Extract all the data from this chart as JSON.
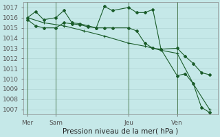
{
  "title": "Pression niveau de la mer( hPa )",
  "bg_color": "#c5e8e8",
  "grid_color": "#b0d4d4",
  "line_color": "#1a5c2a",
  "vline_color": "#3a6a3a",
  "ylim": [
    1006.5,
    1017.5
  ],
  "yticks": [
    1007,
    1008,
    1009,
    1010,
    1011,
    1012,
    1013,
    1014,
    1015,
    1016,
    1017
  ],
  "xlim": [
    0,
    48
  ],
  "xtick_positions": [
    1,
    8,
    26,
    38
  ],
  "xtick_labels": [
    "Mer",
    "Sam",
    "Jeu",
    "Ven"
  ],
  "vline_positions": [
    1,
    8,
    26,
    38
  ],
  "line1_x": [
    1,
    3,
    5,
    8,
    10,
    12,
    14,
    16,
    18,
    20,
    22,
    26,
    28,
    30,
    32,
    34,
    38,
    40,
    42,
    44,
    46
  ],
  "line1_y": [
    1016.0,
    1016.6,
    1015.8,
    1016.0,
    1016.7,
    1015.5,
    1015.4,
    1015.2,
    1015.0,
    1017.1,
    1016.7,
    1017.0,
    1016.5,
    1016.5,
    1016.8,
    1012.9,
    1013.0,
    1012.2,
    1011.5,
    1010.6,
    1010.4
  ],
  "line2_x": [
    1,
    3,
    5,
    8,
    10,
    12,
    14,
    16,
    18,
    20,
    22,
    26,
    28,
    30,
    32,
    34,
    38,
    40,
    42,
    44,
    46
  ],
  "line2_y": [
    1015.8,
    1015.2,
    1015.0,
    1015.0,
    1015.5,
    1015.4,
    1015.3,
    1015.1,
    1015.0,
    1015.0,
    1015.0,
    1015.0,
    1014.7,
    1013.5,
    1013.0,
    1012.9,
    1010.3,
    1010.5,
    1009.5,
    1007.2,
    1006.7
  ],
  "line3_x": [
    1,
    5,
    10,
    15,
    20,
    26,
    30,
    34,
    38,
    42,
    46
  ],
  "line3_y": [
    1016.0,
    1015.5,
    1015.2,
    1014.7,
    1014.2,
    1013.5,
    1013.2,
    1012.8,
    1012.5,
    1009.5,
    1007.0
  ],
  "title_fontsize": 7.5,
  "tick_fontsize": 6.5
}
